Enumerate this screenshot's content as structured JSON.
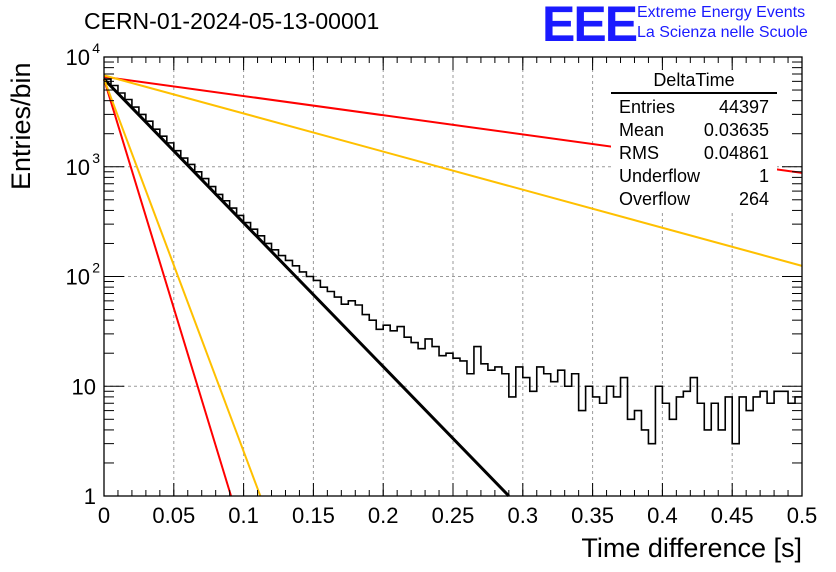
{
  "header": {
    "title": "CERN-01-2024-05-13-00001",
    "logo_text": "EEE",
    "logo_line1": "Extreme Energy Events",
    "logo_line2": "La Scienza nelle Scuole"
  },
  "stats_box": {
    "title": "DeltaTime",
    "rows": [
      {
        "label": "Entries",
        "value": "44397"
      },
      {
        "label": "Mean",
        "value": "0.03635"
      },
      {
        "label": "RMS",
        "value": "0.04861"
      },
      {
        "label": "Underflow",
        "value": "1"
      },
      {
        "label": "Overflow",
        "value": "264"
      }
    ]
  },
  "chart_data": {
    "type": "line",
    "title": "CERN-01-2024-05-13-00001",
    "xlabel": "Time difference [s]",
    "ylabel": "Entries/bin",
    "xlim": [
      0,
      0.5
    ],
    "ylim": [
      1,
      10000
    ],
    "yscale": "log",
    "grid": true,
    "legend": "none",
    "x_ticks": [
      "0",
      "0.05",
      "0.1",
      "0.15",
      "0.2",
      "0.25",
      "0.3",
      "0.35",
      "0.4",
      "0.45",
      "0.5"
    ],
    "y_ticks": [
      {
        "value": 1,
        "label": "1"
      },
      {
        "value": 10,
        "label": "10"
      },
      {
        "value": 100,
        "label": "10",
        "exp": "2"
      },
      {
        "value": 1000,
        "label": "10",
        "exp": "3"
      },
      {
        "value": 10000,
        "label": "10",
        "exp": "4"
      }
    ],
    "histogram": {
      "color": "#000000",
      "bin_width": 0.005,
      "bin_start": 0,
      "values": [
        6300,
        5500,
        4700,
        4100,
        3500,
        3000,
        2600,
        2200,
        1900,
        1650,
        1400,
        1200,
        1050,
        900,
        780,
        660,
        560,
        490,
        420,
        360,
        310,
        270,
        235,
        200,
        175,
        155,
        140,
        125,
        110,
        100,
        92,
        80,
        73,
        65,
        56,
        60,
        55,
        45,
        40,
        33,
        36,
        32,
        35,
        28,
        25,
        22,
        27,
        23,
        19,
        20,
        18,
        17,
        13,
        23,
        16,
        14,
        15,
        13,
        8,
        15,
        12,
        9,
        15,
        13,
        11,
        14,
        10,
        13,
        6,
        10,
        8,
        7,
        10,
        8,
        12,
        5,
        6,
        4,
        3,
        10,
        7,
        5,
        8,
        9,
        12,
        7,
        4,
        7,
        4,
        8,
        3,
        8,
        6,
        8,
        9,
        7,
        9,
        9,
        7,
        8
      ]
    },
    "series": [
      {
        "color": "#000000",
        "x": [
          0,
          0.29
        ],
        "y": [
          6300,
          1
        ]
      },
      {
        "color": "#ff0000",
        "x": [
          0,
          0.5
        ],
        "y": [
          6600,
          880
        ]
      },
      {
        "color": "#ffc000",
        "x": [
          0,
          0.5
        ],
        "y": [
          6800,
          125
        ]
      },
      {
        "color": "#ff0000",
        "x": [
          0,
          0.091
        ],
        "y": [
          6300,
          1
        ]
      },
      {
        "color": "#ffc000",
        "x": [
          0,
          0.112
        ],
        "y": [
          6300,
          1
        ]
      }
    ]
  }
}
